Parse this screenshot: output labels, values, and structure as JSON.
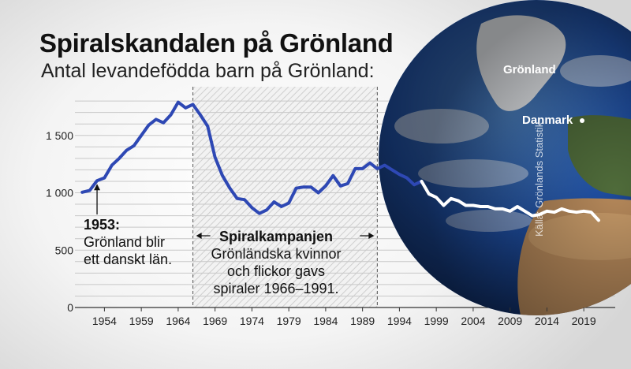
{
  "title": "Spiralskandalen på Grönland",
  "subtitle": "Antal levandefödda barn på Grönland:",
  "source": "Källa: Grönlands Statistik",
  "globe_labels": {
    "greenland": "Grönland",
    "denmark": "Danmark"
  },
  "annotations": {
    "year1953": {
      "heading": "1953:",
      "line1": "Grönland blir",
      "line2": "ett danskt län."
    },
    "campaign": {
      "heading": "Spiralkampanjen",
      "line1": "Grönländska kvinnor",
      "line2": "och flickor gavs",
      "line3": "spiraler 1966–1991."
    }
  },
  "colors": {
    "line": "#2e48b4",
    "line_after": "#ffffff",
    "globe_ocean": "#1f4fa3"
  },
  "chart_data": {
    "type": "line",
    "title": "Antal levandefödda barn på Grönland:",
    "xlabel": "",
    "ylabel": "",
    "xlim": [
      1950,
      2023
    ],
    "ylim": [
      0,
      1900
    ],
    "y_ticks": [
      0,
      500,
      1000,
      1500
    ],
    "y_tick_labels": [
      "0",
      "500",
      "1 000",
      "1 500"
    ],
    "x_ticks": [
      1954,
      1959,
      1964,
      1969,
      1974,
      1979,
      1984,
      1989,
      1994,
      1999,
      2004,
      2009,
      2014,
      2019
    ],
    "x_tick_labels": [
      "1954",
      "1959",
      "1964",
      "1969",
      "1974",
      "1979",
      "1984",
      "1989",
      "1994",
      "1999",
      "2004",
      "2009",
      "2014",
      "2019"
    ],
    "grid": true,
    "shaded_range": [
      1966,
      1991
    ],
    "series": [
      {
        "x": [
          1951,
          1952,
          1953,
          1954,
          1955,
          1956,
          1957,
          1958,
          1959,
          1960,
          1961,
          1962,
          1963,
          1964,
          1965,
          1966,
          1967,
          1968,
          1969,
          1970,
          1971,
          1972,
          1973,
          1974,
          1975,
          1976,
          1977,
          1978,
          1979,
          1980,
          1981,
          1982,
          1983,
          1984,
          1985,
          1986,
          1987,
          1988,
          1989,
          1990,
          1991,
          1992,
          1993,
          1994,
          1995,
          1996,
          1997
        ],
        "y": [
          1005,
          1020,
          1105,
          1130,
          1240,
          1300,
          1370,
          1410,
          1500,
          1590,
          1640,
          1610,
          1680,
          1790,
          1740,
          1770,
          1680,
          1580,
          1310,
          1150,
          1040,
          950,
          940,
          870,
          820,
          850,
          920,
          880,
          910,
          1040,
          1050,
          1050,
          1000,
          1060,
          1150,
          1060,
          1080,
          1210,
          1210,
          1260,
          1210,
          1240,
          1200,
          1160,
          1130,
          1070,
          1100
        ]
      },
      {
        "x": [
          1997,
          1998,
          1999,
          2000,
          2001,
          2002,
          2003,
          2004,
          2005,
          2006,
          2007,
          2008,
          2009,
          2010,
          2011,
          2012,
          2013,
          2014,
          2015,
          2016,
          2017,
          2018,
          2019,
          2020,
          2021
        ],
        "y": [
          1100,
          990,
          960,
          890,
          950,
          930,
          890,
          890,
          880,
          880,
          860,
          860,
          840,
          880,
          840,
          800,
          810,
          840,
          830,
          860,
          840,
          830,
          840,
          830,
          760
        ]
      }
    ]
  }
}
